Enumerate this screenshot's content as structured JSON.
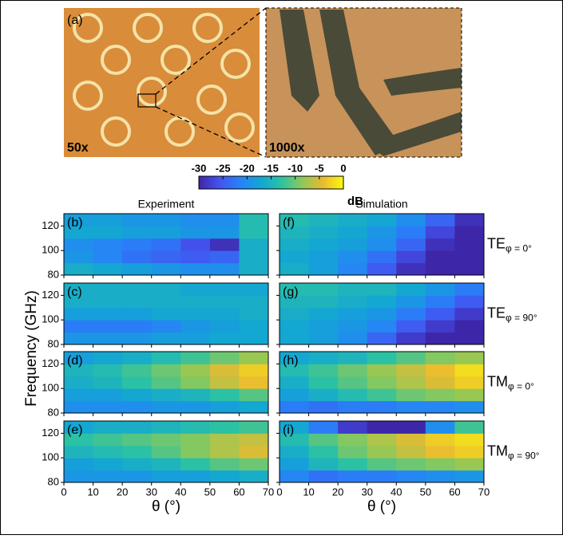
{
  "images": {
    "panel_label": "(a)",
    "left_label": "50x",
    "right_label": "1000x"
  },
  "colorbar": {
    "lim": [
      -30,
      0
    ],
    "ticks": [
      -30,
      -25,
      -20,
      -15,
      -10,
      -5,
      0
    ],
    "label": "dB"
  },
  "column_titles": [
    "Experiment",
    "Simulation"
  ],
  "ylabel": "Frequency (GHz)",
  "xlabel": "θ (°)",
  "axes": {
    "xlim": [
      0,
      70
    ],
    "xticks": [
      0,
      10,
      20,
      30,
      40,
      50,
      60,
      70
    ],
    "ylim": [
      80,
      130
    ],
    "yticks": [
      80,
      100,
      120
    ]
  },
  "colormap": [
    "#3e26a8",
    "#4354f0",
    "#2782f8",
    "#12a6d4",
    "#2cc2a3",
    "#8dc95a",
    "#e9ba30",
    "#f9fb0e"
  ],
  "row_labels": [
    {
      "main": "TE",
      "sub": "φ = 0°"
    },
    {
      "main": "TE",
      "sub": "φ = 90°"
    },
    {
      "main": "TM",
      "sub": "φ = 0°"
    },
    {
      "main": "TM",
      "sub": "φ = 90°"
    }
  ],
  "chart_data": [
    {
      "type": "heatmap",
      "label": "(b)",
      "x": [
        5,
        15,
        25,
        35,
        45,
        55,
        65
      ],
      "y": [
        85,
        95,
        105,
        115,
        125
      ],
      "z": [
        [
          -16,
          -17,
          -18,
          -19,
          -20,
          -20,
          -16
        ],
        [
          -19,
          -21,
          -23,
          -24,
          -25,
          -24,
          -16
        ],
        [
          -20,
          -21,
          -22,
          -23,
          -26,
          -29,
          -16
        ],
        [
          -17,
          -17,
          -18,
          -18,
          -19,
          -19,
          -14
        ],
        [
          -18,
          -18,
          -19,
          -19,
          -20,
          -20,
          -14
        ]
      ]
    },
    {
      "type": "heatmap",
      "label": "(c)",
      "x": [
        5,
        15,
        25,
        35,
        45,
        55,
        65
      ],
      "y": [
        85,
        95,
        105,
        115,
        125
      ],
      "z": [
        [
          -19,
          -19,
          -19,
          -18,
          -18,
          -17,
          -17
        ],
        [
          -22,
          -22,
          -22,
          -21,
          -19,
          -18,
          -17
        ],
        [
          -18,
          -18,
          -18,
          -17,
          -17,
          -17,
          -16
        ],
        [
          -16,
          -16,
          -16,
          -16,
          -16,
          -16,
          -16
        ],
        [
          -16,
          -16,
          -16,
          -16,
          -17,
          -17,
          -17
        ]
      ]
    },
    {
      "type": "heatmap",
      "label": "(d)",
      "x": [
        5,
        15,
        25,
        35,
        45,
        55,
        65
      ],
      "y": [
        85,
        95,
        105,
        115,
        125
      ],
      "z": [
        [
          -20,
          -20,
          -20,
          -19,
          -19,
          -18,
          -17
        ],
        [
          -18,
          -18,
          -17,
          -16,
          -15,
          -13,
          -11
        ],
        [
          -16,
          -15,
          -13,
          -11,
          -9,
          -6,
          -4
        ],
        [
          -15,
          -14,
          -12,
          -10,
          -8,
          -5,
          -3
        ],
        [
          -18,
          -17,
          -16,
          -14,
          -12,
          -10,
          -8
        ]
      ]
    },
    {
      "type": "heatmap",
      "label": "(e)",
      "x": [
        5,
        15,
        25,
        35,
        45,
        55,
        65
      ],
      "y": [
        85,
        95,
        105,
        115,
        125
      ],
      "z": [
        [
          -19,
          -19,
          -19,
          -18,
          -18,
          -17,
          -16
        ],
        [
          -18,
          -17,
          -16,
          -15,
          -13,
          -11,
          -10
        ],
        [
          -15,
          -14,
          -13,
          -11,
          -9,
          -7,
          -5
        ],
        [
          -13,
          -12,
          -11,
          -10,
          -9,
          -7,
          -6
        ],
        [
          -17,
          -16,
          -16,
          -15,
          -14,
          -13,
          -12
        ]
      ]
    },
    {
      "type": "heatmap",
      "label": "(f)",
      "x": [
        5,
        15,
        25,
        35,
        45,
        55,
        65
      ],
      "y": [
        85,
        95,
        105,
        115,
        125
      ],
      "z": [
        [
          -16,
          -18,
          -21,
          -25,
          -29,
          -30,
          -30
        ],
        [
          -17,
          -18,
          -20,
          -23,
          -27,
          -30,
          -30
        ],
        [
          -16,
          -17,
          -18,
          -20,
          -24,
          -29,
          -30
        ],
        [
          -15,
          -16,
          -17,
          -19,
          -22,
          -27,
          -30
        ],
        [
          -14,
          -15,
          -16,
          -17,
          -20,
          -24,
          -29
        ]
      ]
    },
    {
      "type": "heatmap",
      "label": "(g)",
      "x": [
        5,
        15,
        25,
        35,
        45,
        55,
        65
      ],
      "y": [
        85,
        95,
        105,
        115,
        125
      ],
      "z": [
        [
          -17,
          -18,
          -20,
          -24,
          -28,
          -30,
          -30
        ],
        [
          -17,
          -18,
          -19,
          -21,
          -25,
          -28,
          -30
        ],
        [
          -16,
          -17,
          -18,
          -19,
          -22,
          -25,
          -28
        ],
        [
          -15,
          -15,
          -16,
          -17,
          -19,
          -22,
          -25
        ],
        [
          -14,
          -14,
          -15,
          -15,
          -17,
          -19,
          -22
        ]
      ]
    },
    {
      "type": "heatmap",
      "label": "(h)",
      "x": [
        5,
        15,
        25,
        35,
        45,
        55,
        65
      ],
      "y": [
        85,
        95,
        105,
        115,
        125
      ],
      "z": [
        [
          -22,
          -23,
          -22,
          -22,
          -21,
          -21,
          -20
        ],
        [
          -18,
          -16,
          -14,
          -12,
          -10,
          -9,
          -8
        ],
        [
          -16,
          -13,
          -11,
          -9,
          -7,
          -5,
          -3
        ],
        [
          -14,
          -12,
          -10,
          -8,
          -6,
          -4,
          -2
        ],
        [
          -17,
          -16,
          -15,
          -13,
          -11,
          -9,
          -8
        ]
      ]
    },
    {
      "type": "heatmap",
      "label": "(i)",
      "x": [
        5,
        15,
        25,
        35,
        45,
        55,
        65
      ],
      "y": [
        85,
        95,
        105,
        115,
        125
      ],
      "z": [
        [
          -21,
          -23,
          -22,
          -22,
          -21,
          -20,
          -19
        ],
        [
          -18,
          -15,
          -13,
          -11,
          -10,
          -9,
          -8
        ],
        [
          -16,
          -13,
          -10,
          -8,
          -6,
          -4,
          -3
        ],
        [
          -14,
          -11,
          -9,
          -7,
          -5,
          -3,
          -2
        ],
        [
          -17,
          -22,
          -28,
          -30,
          -30,
          -20,
          -12
        ]
      ]
    }
  ]
}
